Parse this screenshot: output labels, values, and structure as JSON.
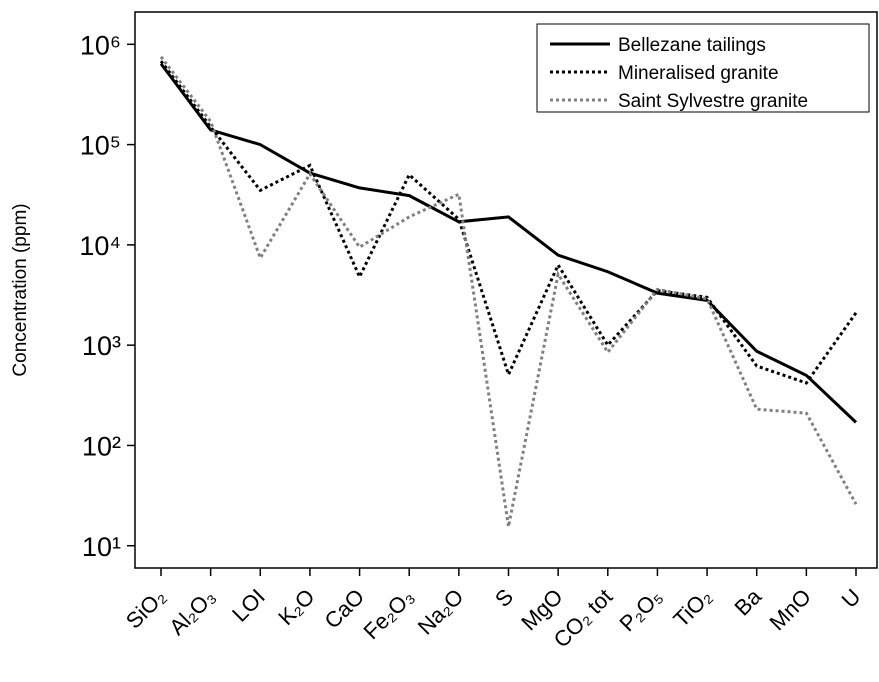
{
  "chart_data": {
    "type": "line",
    "y_label": "Concentration (ppm)",
    "categories": [
      "SiO₂",
      "Al₂O₃",
      "LOI",
      "K₂O",
      "CaO",
      "Fe₂O₃",
      "Na₂O",
      "S",
      "MgO",
      "CO₂ tot",
      "P₂O₅",
      "TiO₂",
      "Ba",
      "MnO",
      "U"
    ],
    "log_scale": true,
    "ylim": [
      6,
      2100000
    ],
    "yticks": [
      {
        "value": 10,
        "label": "10¹"
      },
      {
        "value": 100,
        "label": "10²"
      },
      {
        "value": 1000,
        "label": "10³"
      },
      {
        "value": 10000,
        "label": "10⁴"
      },
      {
        "value": 100000,
        "label": "10⁵"
      },
      {
        "value": 1000000,
        "label": "10⁶"
      }
    ],
    "legend_position": "upper right",
    "series": [
      {
        "name": "Bellezane tailings",
        "color": "#000000",
        "dash": "solid",
        "values": [
          640000,
          140000,
          100000,
          52000,
          37000,
          31000,
          17000,
          19000,
          7900,
          5400,
          3300,
          2800,
          870,
          500,
          170
        ]
      },
      {
        "name": "Mineralised granite",
        "color": "#000000",
        "dash": "dotted",
        "values": [
          680000,
          150000,
          35000,
          62000,
          4800,
          50000,
          18000,
          510,
          6300,
          1000,
          3500,
          3000,
          620,
          420,
          2100
        ]
      },
      {
        "name": "Saint Sylvestre granite",
        "color": "#808080",
        "dash": "dotted",
        "values": [
          750000,
          170000,
          7400,
          51000,
          9500,
          19000,
          32000,
          15.5,
          5100,
          850,
          3600,
          2900,
          230,
          210,
          26
        ]
      }
    ]
  }
}
